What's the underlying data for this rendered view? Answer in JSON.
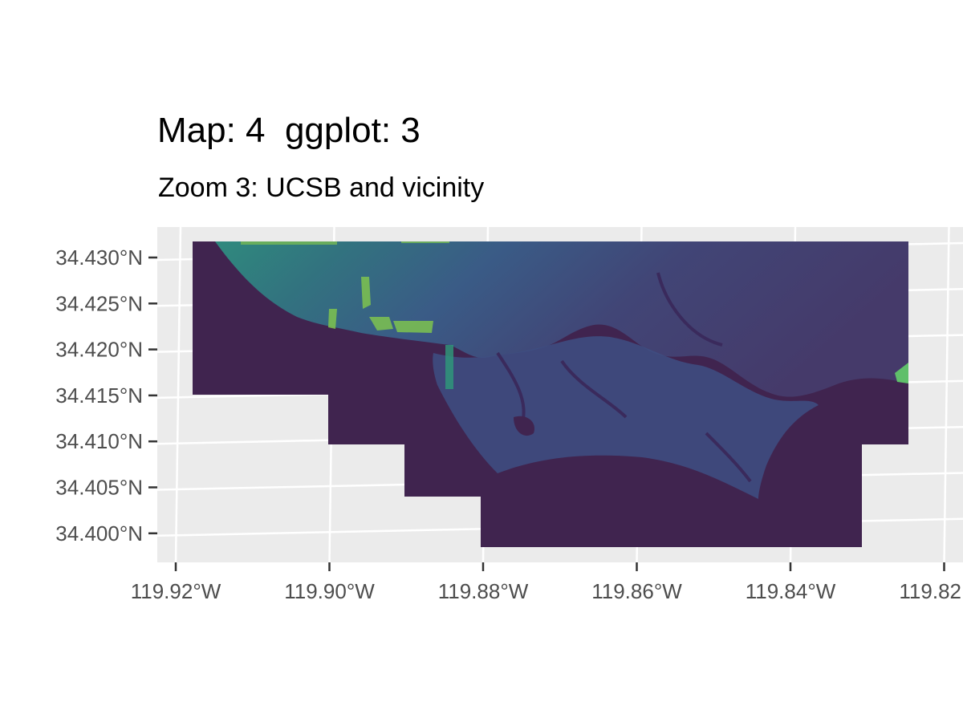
{
  "title": "Map: 4  ggplot: 3",
  "subtitle": "Zoom 3: UCSB and vicinity",
  "colors": {
    "panel_background": "#ebebeb",
    "grid": "#ffffff",
    "ocean": "#40244f",
    "land_low": "#3f4d85",
    "land_high": "#2f9080",
    "peak": "#8bcf45"
  },
  "chart_data": {
    "type": "heatmap",
    "title": "Map: 4  ggplot: 3",
    "subtitle": "Zoom 3: UCSB and vicinity",
    "xlabel": "",
    "ylabel": "",
    "xlim": [
      -119.922,
      -119.82
    ],
    "ylim": [
      34.397,
      34.433
    ],
    "x_ticks": [
      -119.92,
      -119.9,
      -119.88,
      -119.86,
      -119.84,
      -119.82
    ],
    "y_ticks": [
      34.4,
      34.405,
      34.41,
      34.415,
      34.42,
      34.425,
      34.43
    ],
    "x_tick_labels": [
      "119.92°W",
      "119.90°W",
      "119.88°W",
      "119.86°W",
      "119.84°W",
      "119.82"
    ],
    "y_tick_labels": [
      "34.400°N",
      "34.405°N",
      "34.410°N",
      "34.415°N",
      "34.420°N",
      "34.425°N",
      "34.430°N"
    ],
    "grid": true,
    "legend": "none",
    "colormap": "viridis",
    "raster_extent": {
      "xmin": -119.918,
      "xmax": -119.825,
      "ymin": 34.3985,
      "ymax": 34.4315
    }
  }
}
